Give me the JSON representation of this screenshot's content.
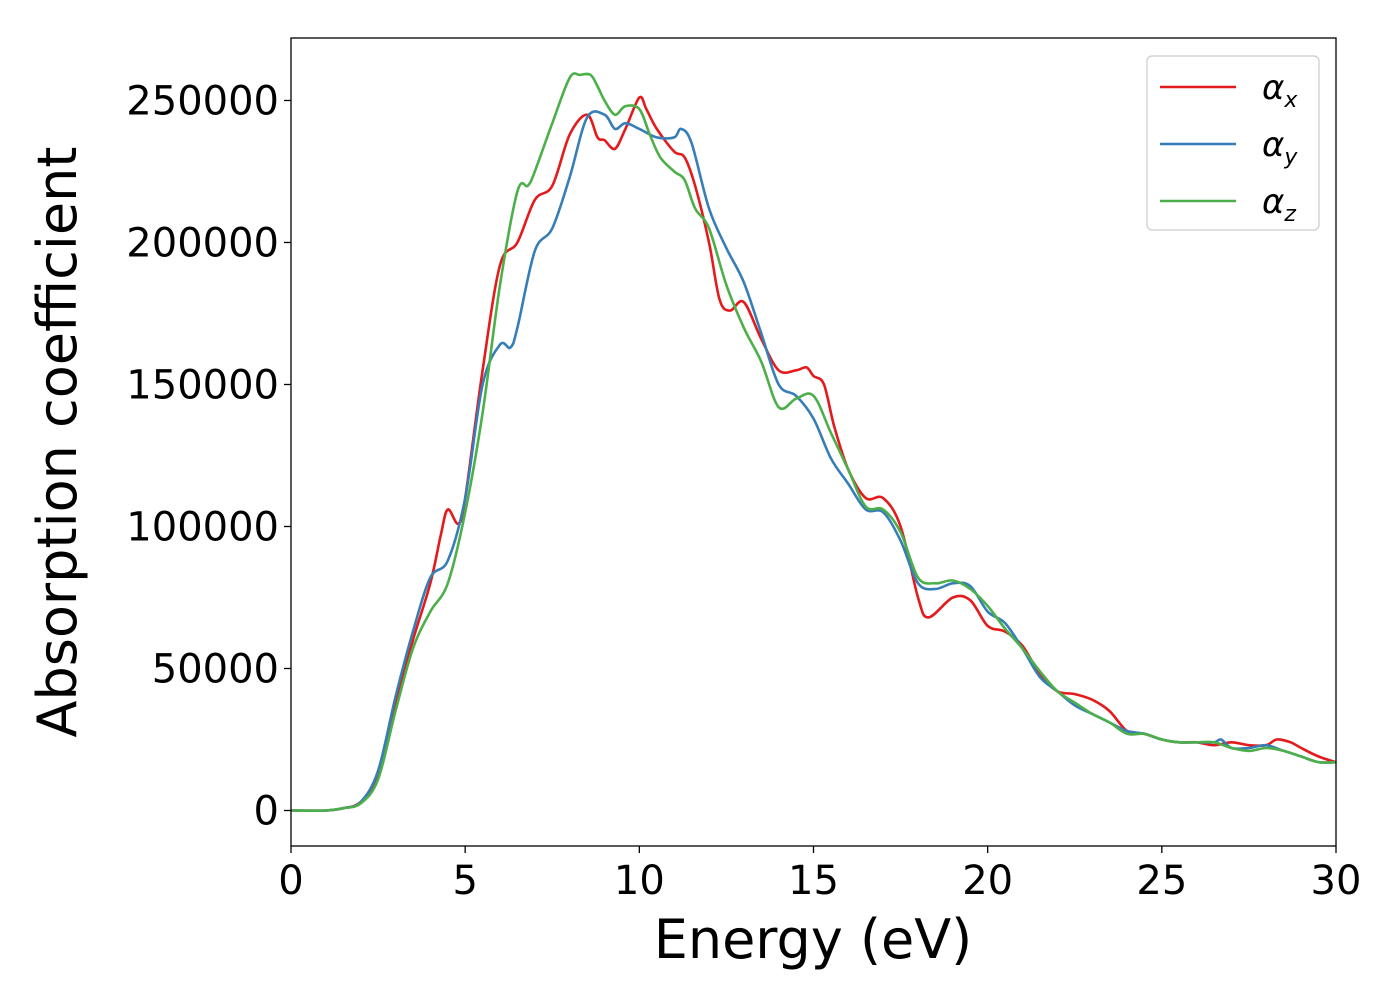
{
  "chart_data": {
    "type": "line",
    "title": "",
    "xlabel": "Energy (eV)",
    "ylabel": "Absorption coefficient",
    "xlim": [
      0,
      30
    ],
    "ylim": [
      -12500,
      272000
    ],
    "xticks": [
      0,
      5,
      10,
      15,
      20,
      25,
      30
    ],
    "yticks": [
      0,
      50000,
      100000,
      150000,
      200000,
      250000
    ],
    "grid": false,
    "legend_position": "top-right",
    "series": [
      {
        "name": "α",
        "subscript": "x",
        "color": "#e41a1c",
        "x": [
          0,
          1,
          1.5,
          2,
          2.5,
          3,
          3.5,
          4,
          4.3,
          4.5,
          4.8,
          5,
          5.5,
          6,
          6.5,
          7,
          7.5,
          8,
          8.5,
          8.8,
          9,
          9.3,
          9.6,
          10,
          10.2,
          10.5,
          11,
          11.3,
          11.6,
          12,
          12.3,
          12.6,
          13,
          13.5,
          14,
          14.5,
          14.8,
          15,
          15.3,
          15.6,
          16,
          16.5,
          17,
          17.5,
          18,
          18.3,
          19,
          19.5,
          20,
          20.5,
          21,
          21.5,
          22,
          22.5,
          23,
          23.5,
          24,
          24.5,
          25,
          25.5,
          26,
          26.5,
          27,
          27.5,
          28,
          28.3,
          28.7,
          29,
          29.5,
          30
        ],
        "y": [
          0,
          0,
          800,
          3000,
          12000,
          38000,
          60000,
          80000,
          97000,
          106000,
          101000,
          110000,
          155000,
          192000,
          200000,
          215000,
          220000,
          238000,
          245000,
          237000,
          236000,
          233000,
          240000,
          251000,
          247000,
          240000,
          232000,
          230000,
          220000,
          200000,
          180000,
          176000,
          179000,
          166000,
          155000,
          155000,
          156000,
          153000,
          150000,
          135000,
          120000,
          110000,
          110000,
          100000,
          75000,
          68000,
          75000,
          74000,
          65000,
          63000,
          58000,
          48000,
          42000,
          41000,
          39000,
          35000,
          28000,
          27000,
          25000,
          24000,
          24000,
          23000,
          24000,
          23000,
          23000,
          25000,
          24000,
          22000,
          19000,
          17000
        ]
      },
      {
        "name": "α",
        "subscript": "y",
        "color": "#377eb8",
        "x": [
          0,
          1,
          1.5,
          2,
          2.5,
          3,
          3.5,
          4,
          4.5,
          5,
          5.5,
          6,
          6.3,
          6.5,
          7,
          7.5,
          8,
          8.5,
          9,
          9.3,
          9.6,
          10,
          10.5,
          11,
          11.2,
          11.5,
          12,
          12.5,
          13,
          13.5,
          14,
          14.5,
          15,
          15.5,
          16,
          16.5,
          17,
          17.5,
          18,
          18.5,
          19,
          19.5,
          20,
          20.5,
          21,
          21.5,
          22,
          22.5,
          23,
          23.5,
          24,
          24.5,
          25,
          25.5,
          26,
          26.5,
          26.7,
          27,
          27.5,
          28,
          28.5,
          29,
          29.5,
          30
        ],
        "y": [
          0,
          0,
          800,
          3000,
          14000,
          40000,
          63000,
          82000,
          88000,
          110000,
          150000,
          164000,
          163000,
          170000,
          197000,
          205000,
          223000,
          244000,
          245000,
          240000,
          242000,
          240000,
          237000,
          237000,
          240000,
          235000,
          212000,
          198000,
          186000,
          168000,
          150000,
          146000,
          138000,
          124000,
          115000,
          106000,
          105000,
          95000,
          80000,
          78000,
          80000,
          79000,
          70000,
          66000,
          57000,
          47000,
          42000,
          37000,
          34000,
          31000,
          28000,
          27000,
          25000,
          24000,
          24000,
          24000,
          25000,
          22000,
          22000,
          23000,
          21000,
          19000,
          17000,
          17000
        ]
      },
      {
        "name": "α",
        "subscript": "z",
        "color": "#4daf4a",
        "x": [
          0,
          1,
          1.5,
          2,
          2.5,
          3,
          3.5,
          4,
          4.5,
          5,
          5.5,
          6,
          6.5,
          6.8,
          7,
          7.5,
          8,
          8.3,
          8.6,
          8.8,
          9,
          9.3,
          9.6,
          10,
          10.3,
          10.6,
          11,
          11.3,
          11.6,
          12,
          12.5,
          13,
          13.5,
          14,
          14.5,
          15,
          15.5,
          16,
          16.5,
          17,
          17.5,
          18,
          18.5,
          19,
          19.5,
          20,
          20.5,
          21,
          21.5,
          22,
          22.5,
          23,
          23.5,
          24,
          24.5,
          25,
          25.5,
          26,
          26.5,
          27,
          27.5,
          28,
          28.5,
          29,
          29.5,
          30
        ],
        "y": [
          0,
          0,
          800,
          2500,
          11000,
          35000,
          57000,
          70000,
          80000,
          105000,
          140000,
          185000,
          218000,
          220000,
          225000,
          242000,
          258000,
          259000,
          259000,
          255000,
          250000,
          245000,
          248000,
          247000,
          238000,
          230000,
          225000,
          222000,
          212000,
          205000,
          185000,
          170000,
          158000,
          142000,
          145000,
          146000,
          133000,
          120000,
          107000,
          106000,
          98000,
          82000,
          80000,
          81000,
          78000,
          72000,
          64000,
          57000,
          49000,
          42000,
          38000,
          34000,
          31000,
          27000,
          27000,
          25000,
          24000,
          24000,
          24000,
          22000,
          21000,
          22000,
          21000,
          19000,
          17000,
          17000
        ]
      }
    ]
  }
}
